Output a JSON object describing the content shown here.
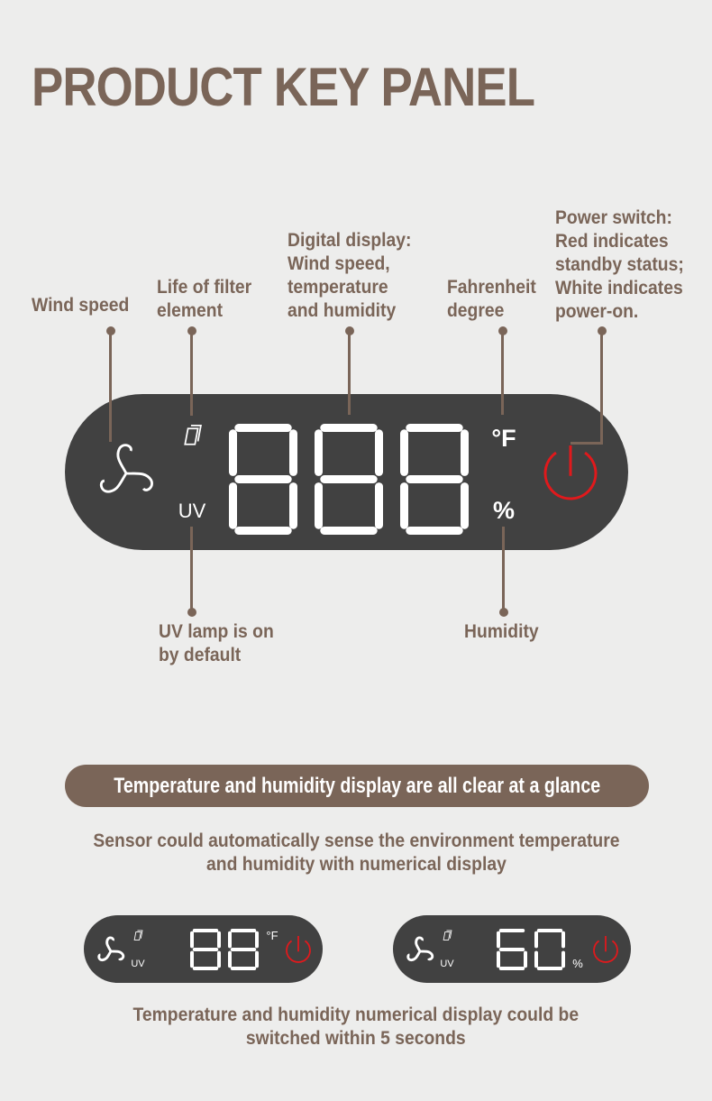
{
  "title": "PRODUCT KEY PANEL",
  "callouts": {
    "wind_speed": "Wind speed",
    "filter_life": "Life of filter\nelement",
    "digital_display": "Digital display:\nWind speed,\ntemperature\nand humidity",
    "fahrenheit": "Fahrenheit\ndegree",
    "power": "Power switch:\nRed indicates\nstandby status;\nWhite indicates\npower-on.",
    "uv": "UV lamp is on\nby default",
    "humidity": "Humidity"
  },
  "panel": {
    "display": "888",
    "uv_label": "UV",
    "fahrenheit_symbol": "°F",
    "percent_symbol": "%",
    "power_color": "#e0191c"
  },
  "banner": "Temperature and humidity display are all clear at a glance",
  "sensor_text": "Sensor could automatically sense the environment temperature\nand humidity with numerical display",
  "examples": [
    {
      "display": "88",
      "unit": "°F",
      "uv_label": "UV"
    },
    {
      "display": "60",
      "unit": "%",
      "uv_label": "UV"
    }
  ],
  "switch_text": "Temperature and humidity numerical display could be\nswitched within 5 seconds",
  "colors": {
    "brand": "#7a6558",
    "panel": "#414141",
    "background": "#ededec"
  }
}
